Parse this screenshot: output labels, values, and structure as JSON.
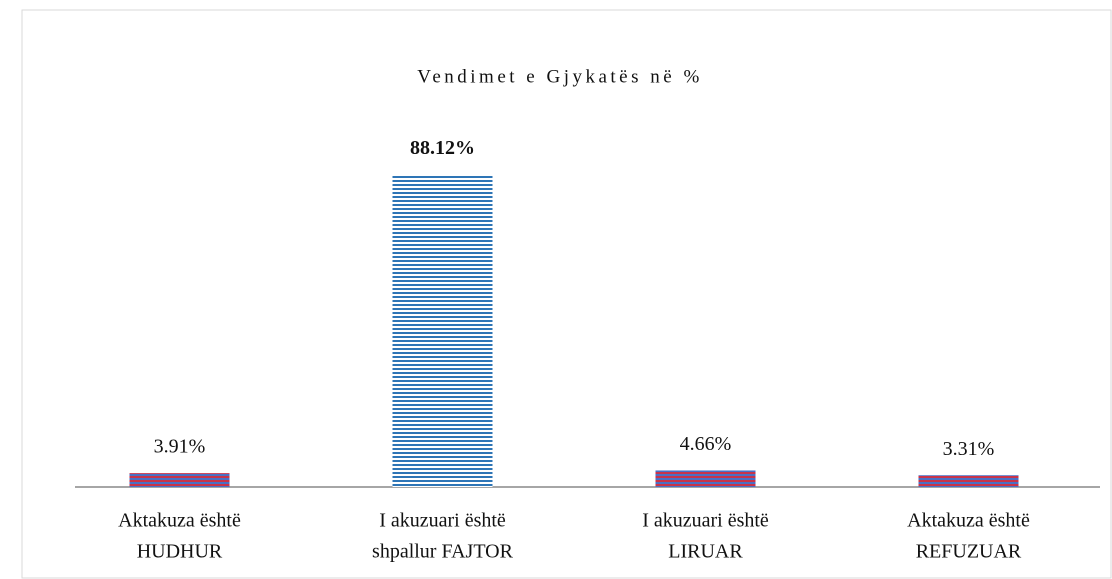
{
  "chart_data": {
    "type": "bar",
    "title": "Vendimet e Gjykatës në %",
    "categories": [
      [
        "Aktakuza është",
        "HUDHUR"
      ],
      [
        "I akuzuari është",
        "shpallur FAJTOR"
      ],
      [
        "I akuzuari është",
        "LIRUAR"
      ],
      [
        "Aktakuza është",
        "REFUZUAR"
      ]
    ],
    "values": [
      3.91,
      88.12,
      4.66,
      3.31
    ],
    "value_labels": [
      "3.91%",
      "88.12%",
      "4.66%",
      "3.31%"
    ],
    "bold_labels": [
      false,
      true,
      false,
      false
    ],
    "colors": [
      "#c8334a",
      "#2e75b6",
      "#c8334a",
      "#c8334a"
    ],
    "ylim": [
      0,
      100
    ]
  }
}
